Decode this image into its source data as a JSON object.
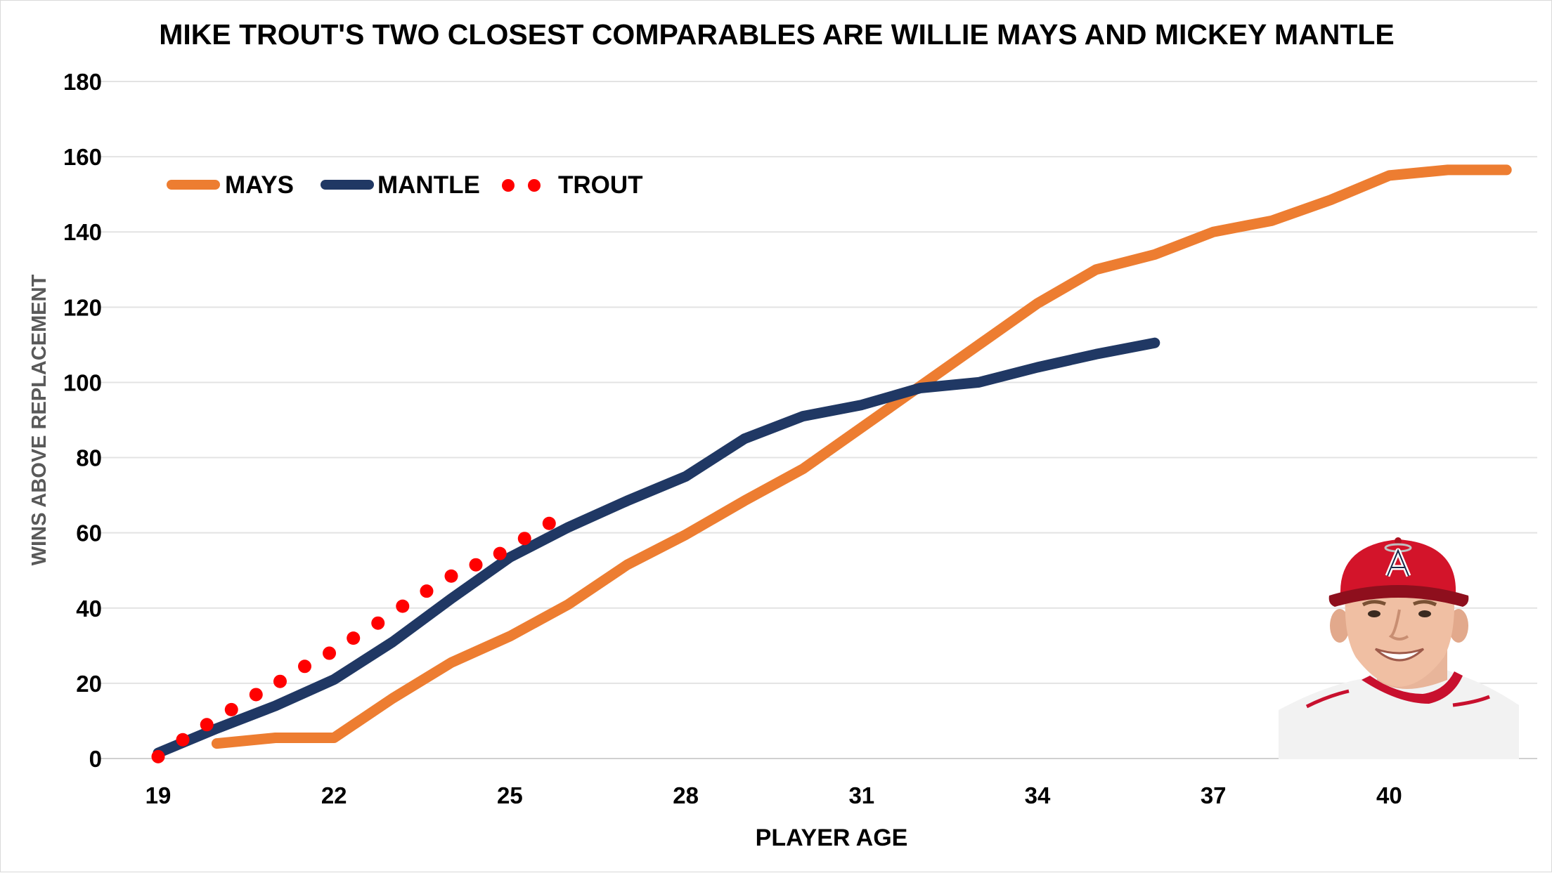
{
  "chart_data": {
    "type": "line",
    "title": "MIKE TROUT'S TWO CLOSEST COMPARABLES ARE WILLIE MAYS AND MICKEY MANTLE",
    "xlabel": "PLAYER AGE",
    "ylabel": "WINS ABOVE REPLACEMENT",
    "xlim": [
      19,
      42
    ],
    "ylim": [
      0,
      180
    ],
    "x_ticks": [
      19,
      22,
      25,
      28,
      31,
      34,
      37,
      40
    ],
    "y_ticks": [
      0,
      20,
      40,
      60,
      80,
      100,
      120,
      140,
      160,
      180
    ],
    "grid": true,
    "legend_position": "top-left",
    "series": [
      {
        "name": "MAYS",
        "style": "solid",
        "color": "#ED7D31",
        "points": [
          [
            20,
            4
          ],
          [
            21,
            5.5
          ],
          [
            22,
            5.5
          ],
          [
            23,
            16
          ],
          [
            24,
            25.5
          ],
          [
            25,
            32.5
          ],
          [
            26,
            41
          ],
          [
            27,
            51.5
          ],
          [
            28,
            59.5
          ],
          [
            29,
            68.5
          ],
          [
            30,
            77
          ],
          [
            31,
            88
          ],
          [
            32,
            99
          ],
          [
            33,
            110
          ],
          [
            34,
            121
          ],
          [
            35,
            130
          ],
          [
            36,
            134
          ],
          [
            37,
            140
          ],
          [
            38,
            143
          ],
          [
            39,
            148.5
          ],
          [
            40,
            155
          ],
          [
            41,
            156.5
          ],
          [
            42,
            156.5
          ]
        ]
      },
      {
        "name": "MANTLE",
        "style": "solid",
        "color": "#203864",
        "points": [
          [
            19,
            1.5
          ],
          [
            20,
            8
          ],
          [
            21,
            14
          ],
          [
            22,
            21
          ],
          [
            23,
            31
          ],
          [
            24,
            42.5
          ],
          [
            25,
            53.5
          ],
          [
            26,
            61.5
          ],
          [
            27,
            68.5
          ],
          [
            28,
            75
          ],
          [
            29,
            85
          ],
          [
            30,
            91
          ],
          [
            31,
            94
          ],
          [
            32,
            98.5
          ],
          [
            33,
            100
          ],
          [
            34,
            104
          ],
          [
            35,
            107.5
          ],
          [
            36,
            110.5
          ]
        ]
      },
      {
        "name": "TROUT",
        "style": "dotted",
        "color": "#FF0000",
        "points": [
          [
            19,
            0.5
          ],
          [
            19.42,
            5
          ],
          [
            19.83,
            9
          ],
          [
            20.25,
            13
          ],
          [
            20.67,
            17
          ],
          [
            21.08,
            20.5
          ],
          [
            21.5,
            24.5
          ],
          [
            21.92,
            28
          ],
          [
            22.33,
            32
          ],
          [
            22.75,
            36
          ],
          [
            23.17,
            40.5
          ],
          [
            23.58,
            44.5
          ],
          [
            24,
            48.5
          ],
          [
            24.42,
            51.5
          ],
          [
            24.83,
            54.5
          ],
          [
            25.25,
            58.5
          ],
          [
            25.67,
            62.5
          ]
        ]
      }
    ]
  },
  "photo": {
    "description_icon": "player-headshot-angels-cap",
    "cap_color": "#D3142A",
    "jersey_color": "#F2F2F2",
    "trim_color": "#C8102E"
  }
}
